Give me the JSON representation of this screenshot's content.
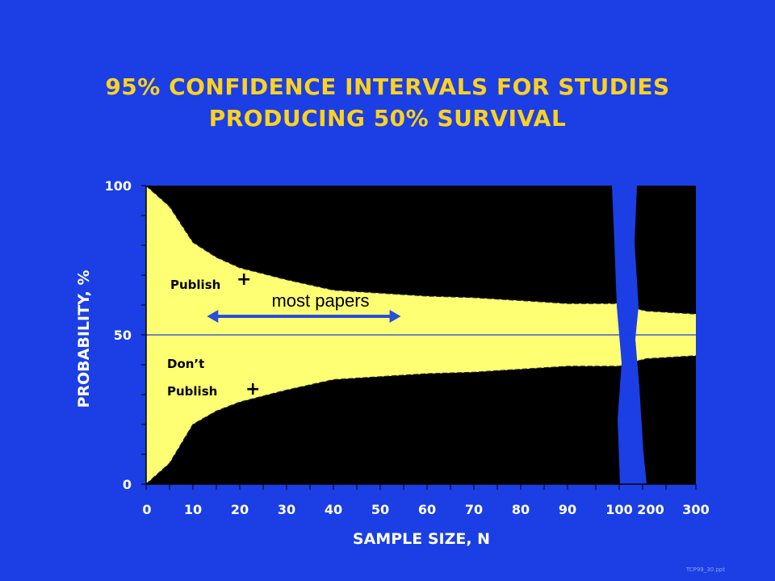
{
  "chart_data": {
    "type": "area",
    "title_lines": [
      "95% CONFIDENCE INTERVALS FOR STUDIES",
      "PRODUCING 50% SURVIVAL"
    ],
    "xlabel": "SAMPLE SIZE, N",
    "ylabel": "PROBABILITY, %",
    "x_ticks": [
      "0",
      "10",
      "20",
      "30",
      "40",
      "50",
      "60",
      "70",
      "80",
      "90",
      "100",
      "200",
      "300"
    ],
    "y_ticks": [
      0,
      50,
      100
    ],
    "ylim": [
      0,
      100
    ],
    "broken_axis_between": [
      "100",
      "200"
    ],
    "reference_line": 50,
    "series": [
      {
        "name": "upper confidence limit",
        "x": [
          "0",
          "5",
          "10",
          "15",
          "20",
          "30",
          "40",
          "50",
          "60",
          "70",
          "80",
          "90",
          "100",
          "200",
          "300"
        ],
        "values": [
          100,
          93,
          81,
          76,
          72.5,
          68.5,
          65,
          64,
          63,
          62.5,
          61.5,
          60.5,
          60.5,
          58,
          57
        ]
      },
      {
        "name": "lower confidence limit",
        "x": [
          "0",
          "5",
          "10",
          "15",
          "20",
          "30",
          "40",
          "50",
          "60",
          "70",
          "80",
          "90",
          "100",
          "200",
          "300"
        ],
        "values": [
          0,
          7,
          20,
          24.5,
          27.5,
          31.5,
          35,
          36,
          37,
          37.5,
          38.5,
          39.5,
          39.5,
          42,
          43
        ]
      }
    ],
    "annotations": {
      "publish_label": "Publish",
      "publish_sign": "+",
      "dont_label_line1": "Don’t",
      "dont_label_line2": "Publish",
      "dont_sign": "+",
      "range_label": "most papers",
      "range_x": [
        "12",
        "53"
      ]
    },
    "colors": {
      "background": "#1b3fe4",
      "band": "#ffff73",
      "outside": "#000000",
      "text": "#ffd21f",
      "arrow": "#2b4fd8"
    }
  },
  "footer_text": "TCP99_30.ppt"
}
